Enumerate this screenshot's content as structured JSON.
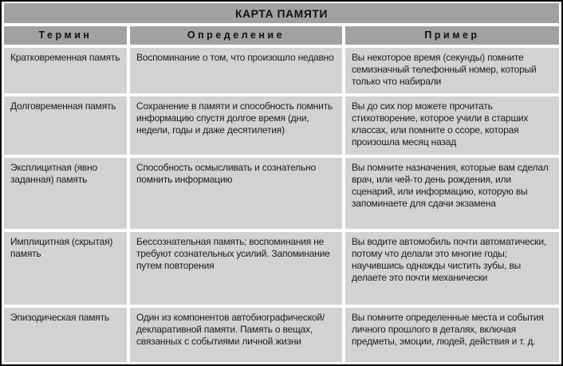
{
  "table": {
    "title": "КАРТА ПАМЯТИ",
    "columns": [
      {
        "label": "Термин"
      },
      {
        "label": "Определение"
      },
      {
        "label": "Пример"
      }
    ],
    "rows": [
      {
        "term": "Кратковременная память",
        "definition": "Воспоминание о том, что произошло недавно",
        "example": "Вы некоторое время (секунды) помните семизначный телефонный номер, который только что набирали"
      },
      {
        "term": "Долговременная память",
        "definition": "Сохранение в памяти и способность помнить информацию спустя долгое время (дни, недели, годы и даже десятилетия)",
        "example": "Вы до сих пор можете прочитать стихотворение, которое учили в старших классах, или помните о ссоре, которая произошла месяц назад"
      },
      {
        "term": "Эксплицитная (явно заданная) память",
        "definition": "Способность осмысливать и сознательно помнить информацию",
        "example": "Вы помните назначения, которые вам сделал врач, или чей-то день рождения, или сценарий, или информацию, которую вы запоминаете для сдачи экзамена"
      },
      {
        "term": "Имплицитная (скрытая) память",
        "definition": "Бессознательная память; воспоминания не требуют сознательных усилий. Запоминание путем повторения",
        "example": "Вы водите автомобиль почти автоматически, потому что делали это многие годы; научившись однажды чистить зубы, вы делаете это почти механически"
      },
      {
        "term": "Эпизодическая память",
        "definition": "Один из компонентов автобиографической/декларативной памяти. Память о вещах, связанных с событиями личной жизни",
        "example": "Вы помните определенные места и события личного прошлого в деталях, включая предметы, эмоции, людей, действия и т. д."
      }
    ]
  },
  "colors": {
    "header_bg": "#a1a1a1",
    "cell_bg": "#d2d2d2",
    "gap": "#ffffff",
    "border": "#000000",
    "text": "#1a1a1a"
  }
}
